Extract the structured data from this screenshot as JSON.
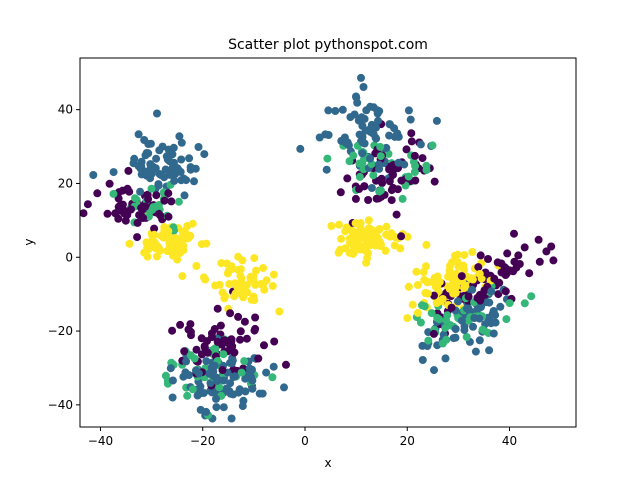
{
  "chart_data": {
    "type": "scatter",
    "title": "Scatter plot pythonspot.com",
    "xlabel": "x",
    "ylabel": "y",
    "xlim": [
      -44,
      53
    ],
    "ylim": [
      -46,
      54
    ],
    "xticks": [
      -40,
      -20,
      0,
      20,
      40
    ],
    "yticks": [
      -40,
      -20,
      0,
      20,
      40
    ],
    "grid": false,
    "marker": "circle",
    "colors": {
      "purple": "#440154",
      "blue": "#31688e",
      "green": "#35b779",
      "yellow": "#fde725"
    },
    "clusters": [
      {
        "color": "blue",
        "cx": -29,
        "cy": 25,
        "sx": 4.5,
        "sy": 4.5,
        "rho": 0.0,
        "n": 70
      },
      {
        "color": "purple",
        "cx": -33,
        "cy": 14,
        "sx": 4.0,
        "sy": 3.5,
        "rho": 0.0,
        "n": 55
      },
      {
        "color": "green",
        "cx": -31,
        "cy": 14,
        "sx": 3.5,
        "sy": 3.0,
        "rho": 0.0,
        "n": 25
      },
      {
        "color": "yellow",
        "cx": -27,
        "cy": 4,
        "sx": 3.5,
        "sy": 3.0,
        "rho": 0.0,
        "n": 65
      },
      {
        "color": "blue",
        "cx": 12,
        "cy": 34,
        "sx": 5.0,
        "sy": 6.0,
        "rho": 0.0,
        "n": 75
      },
      {
        "color": "purple",
        "cx": 16,
        "cy": 22,
        "sx": 5.0,
        "sy": 5.5,
        "rho": 0.0,
        "n": 60
      },
      {
        "color": "green",
        "cx": 15,
        "cy": 24,
        "sx": 4.5,
        "sy": 5.0,
        "rho": 0.0,
        "n": 40
      },
      {
        "color": "yellow",
        "cx": 12,
        "cy": 5,
        "sx": 3.5,
        "sy": 3.0,
        "rho": 0.0,
        "n": 70
      },
      {
        "color": "yellow",
        "cx": -12,
        "cy": -8,
        "sx": 3.0,
        "sy": 3.5,
        "rho": 0.0,
        "n": 55
      },
      {
        "color": "purple",
        "cx": -17,
        "cy": -24,
        "sx": 4.5,
        "sy": 4.5,
        "rho": 0.0,
        "n": 65
      },
      {
        "color": "green",
        "cx": -19,
        "cy": -31,
        "sx": 4.0,
        "sy": 3.5,
        "rho": 0.0,
        "n": 40
      },
      {
        "color": "blue",
        "cx": -16,
        "cy": -34,
        "sx": 4.5,
        "sy": 4.5,
        "rho": 0.0,
        "n": 80
      },
      {
        "color": "yellow",
        "cx": 28,
        "cy": -7,
        "sx": 4.0,
        "sy": 3.5,
        "rho": 0.3,
        "n": 75
      },
      {
        "color": "purple",
        "cx": 37,
        "cy": -5,
        "sx": 5.5,
        "sy": 5.0,
        "rho": 0.75,
        "n": 80
      },
      {
        "color": "green",
        "cx": 30,
        "cy": -16,
        "sx": 4.0,
        "sy": 4.0,
        "rho": 0.4,
        "n": 45
      },
      {
        "color": "blue",
        "cx": 32,
        "cy": -18,
        "sx": 5.0,
        "sy": 5.5,
        "rho": 0.6,
        "n": 60
      }
    ]
  }
}
